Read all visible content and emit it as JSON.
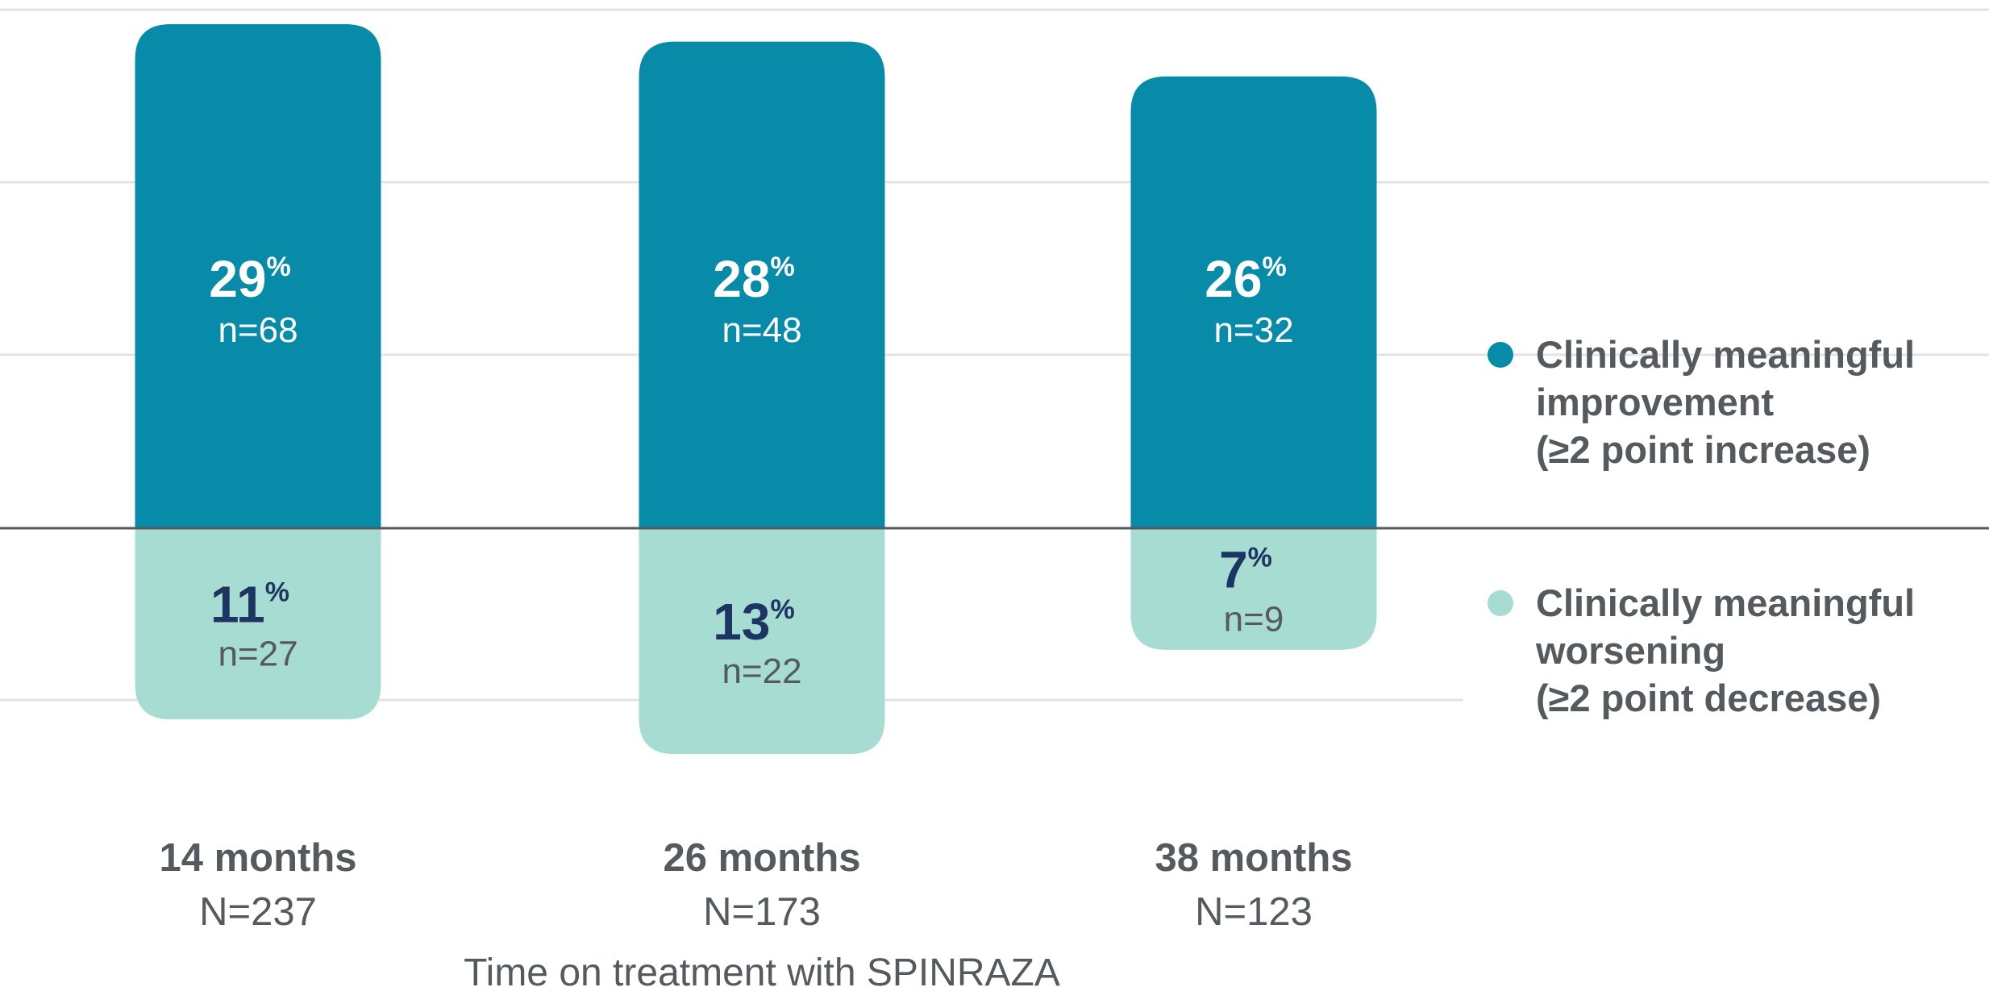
{
  "chart_data": {
    "type": "bar",
    "categories": [
      "14 months",
      "26 months",
      "38 months"
    ],
    "category_n": [
      "N=237",
      "N=173",
      "N=123"
    ],
    "xlabel": "Time on treatment with SPINRAZA",
    "ylabel": "",
    "grid": true,
    "legend_position": "right",
    "series": [
      {
        "name": "Clinically meaningful improvement (≥2 point increase)",
        "legend_label": "Clinically meaningful\nimprovement\n(≥2 point increase)",
        "direction": "up",
        "color": "#078ba8",
        "label_color": "#ffffff",
        "values": [
          29,
          28,
          26
        ],
        "labels": [
          "29",
          "28",
          "26"
        ],
        "n": [
          "n=68",
          "n=48",
          "n=32"
        ]
      },
      {
        "name": "Clinically meaningful worsening (≥2 point decrease)",
        "legend_label": "Clinically meaningful\nworsening\n(≥2 point decrease)",
        "direction": "down",
        "color": "#a6dcd2",
        "label_color": "#1e3562",
        "n_color": "#555a5e",
        "values": [
          11,
          13,
          7
        ],
        "labels": [
          "11",
          "13",
          "7"
        ],
        "n": [
          "n=27",
          "n=22",
          "n=9"
        ]
      }
    ],
    "percent_sign": "%"
  }
}
